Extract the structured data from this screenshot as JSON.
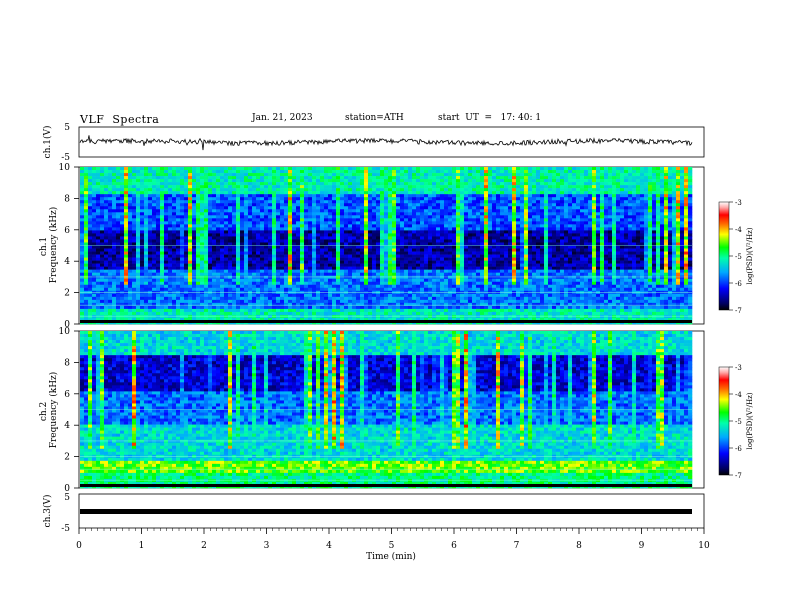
{
  "header": {
    "title": "VLF  Spectra",
    "date": "Jan. 21, 2023",
    "station": "station=ATH",
    "start": "start  UT  =   17: 40: 1"
  },
  "chart_data": [
    {
      "type": "line",
      "panel": "ch1-waveform",
      "ylabel": "ch.1(V)",
      "ylim": [
        -5,
        5
      ],
      "yticks": [
        "5",
        "-5"
      ],
      "xlim": [
        0,
        10
      ],
      "series": [
        {
          "values_summary": {
            "mean": 0.0,
            "typical_range": [
              -1.5,
              1.5
            ]
          }
        }
      ]
    },
    {
      "type": "heatmap",
      "panel": "ch1-spectrogram",
      "ylabel": "ch.1\nFrequency (kHz)",
      "ylim": [
        0,
        10
      ],
      "yticks": [
        "0",
        "2",
        "4",
        "6",
        "8",
        "10"
      ],
      "xlim": [
        0,
        9.8
      ],
      "colorbar": {
        "label": "log(PSD)(V²/Hz)",
        "ticks": [
          "-3",
          "-4",
          "-5",
          "-6",
          "-7"
        ],
        "range": [
          -7,
          -3
        ]
      }
    },
    {
      "type": "heatmap",
      "panel": "ch2-spectrogram",
      "ylabel": "ch.2\nFrequency (kHz)",
      "ylim": [
        0,
        10
      ],
      "yticks": [
        "0",
        "2",
        "4",
        "6",
        "8",
        "10"
      ],
      "xlim": [
        0,
        9.8
      ],
      "colorbar": {
        "label": "log(PSD)(V²/Hz)",
        "ticks": [
          "-3",
          "-4",
          "-5",
          "-6",
          "-7"
        ],
        "range": [
          -7,
          -3
        ]
      }
    },
    {
      "type": "line",
      "panel": "ch3-waveform",
      "ylabel": "ch.3(V)",
      "ylim": [
        -5,
        5
      ],
      "yticks": [
        "5",
        "-5"
      ],
      "xlim": [
        0,
        10
      ],
      "series": [
        {
          "values_summary": {
            "mean": -1.0,
            "typical_range": [
              -1.2,
              -0.8
            ]
          }
        }
      ]
    }
  ],
  "x_axis": {
    "label": "Time  (min)",
    "ticks": [
      "0",
      "1",
      "2",
      "3",
      "4",
      "5",
      "6",
      "7",
      "8",
      "9",
      "10"
    ],
    "range": [
      0,
      10
    ]
  }
}
